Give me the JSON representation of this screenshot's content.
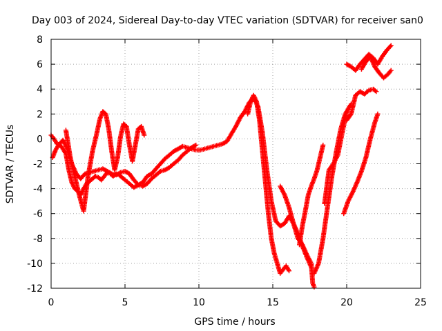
{
  "chart_data": {
    "type": "scatter",
    "title": "Day 003 of 2024, Sidereal Day-to-day VTEC variation (SDTVAR) for receiver san0",
    "xlabel": "GPS time / hours",
    "ylabel": "SDTVAR / TECUs",
    "xlim": [
      0,
      25
    ],
    "ylim": [
      -12,
      8
    ],
    "xticks": [
      0,
      5,
      10,
      15,
      20,
      25
    ],
    "yticks": [
      -12,
      -10,
      -8,
      -6,
      -4,
      -2,
      0,
      2,
      4,
      6,
      8
    ],
    "grid": true,
    "legend": "none",
    "marker": "+",
    "colors": {
      "series": "#ff0000",
      "grid": "#a0a0a0",
      "axis": "#000000"
    },
    "series": [
      {
        "x": [
          0.0,
          0.2,
          0.4,
          0.6,
          0.8,
          1.0,
          1.2,
          1.4,
          1.6,
          1.8,
          2.0,
          2.2,
          2.4,
          2.6,
          2.8,
          3.0,
          3.2,
          3.4,
          3.6,
          3.8,
          4.0,
          4.2,
          4.4,
          4.6,
          4.8,
          5.0,
          5.3,
          5.6,
          5.9,
          6.2,
          6.5,
          6.8,
          7.1,
          7.4,
          7.7,
          8.0,
          8.3,
          8.6,
          8.9,
          9.2,
          9.5,
          9.8,
          10.1,
          10.4,
          10.7,
          11.0,
          11.3,
          11.6,
          11.9,
          12.2,
          12.5,
          12.8,
          13.1,
          13.4,
          13.7,
          14.0,
          14.3,
          14.6,
          14.9,
          15.2,
          15.5,
          15.8,
          16.1,
          16.4,
          16.7,
          17.0,
          17.3,
          17.6
        ],
        "y": [
          0.3,
          0.0,
          -0.4,
          -0.5,
          -0.8,
          -1.2,
          -2.5,
          -3.5,
          -4.0,
          -4.2,
          -4.5,
          -4.0,
          -3.6,
          -3.4,
          -3.2,
          -3.0,
          -3.1,
          -3.3,
          -3.0,
          -2.7,
          -2.8,
          -3.0,
          -2.8,
          -2.9,
          -3.1,
          -3.3,
          -3.6,
          -3.9,
          -3.7,
          -3.5,
          -3.0,
          -2.8,
          -2.4,
          -2.0,
          -1.6,
          -1.3,
          -1.0,
          -0.8,
          -0.6,
          -0.7,
          -0.8,
          -0.9,
          -0.9,
          -0.8,
          -0.7,
          -0.6,
          -0.5,
          -0.4,
          -0.2,
          0.4,
          1.0,
          1.7,
          2.2,
          2.9,
          3.3,
          2.6,
          0.5,
          -2.5,
          -5.0,
          -6.6,
          -7.0,
          -6.8,
          -6.2,
          -6.8,
          -7.6,
          -8.6,
          -9.5,
          -10.3
        ]
      },
      {
        "x": [
          0.1,
          0.3,
          0.5,
          0.8,
          1.1,
          1.4,
          1.7,
          2.0,
          2.3,
          2.6,
          2.9,
          3.2,
          3.5,
          3.8,
          4.1,
          4.4,
          4.7,
          5.0,
          5.3,
          5.6,
          5.9,
          6.2,
          6.5,
          6.8,
          7.1,
          7.4,
          7.7,
          8.0,
          8.3,
          8.6,
          8.9,
          9.2,
          9.5,
          9.8
        ],
        "y": [
          -1.5,
          -0.9,
          -0.5,
          -0.1,
          -0.8,
          -2.0,
          -2.8,
          -3.2,
          -2.8,
          -2.7,
          -2.6,
          -2.5,
          -2.4,
          -2.6,
          -2.8,
          -2.9,
          -2.7,
          -2.6,
          -2.8,
          -3.3,
          -3.7,
          -3.8,
          -3.6,
          -3.2,
          -2.9,
          -2.6,
          -2.5,
          -2.3,
          -2.0,
          -1.7,
          -1.3,
          -1.0,
          -0.7,
          -0.5
        ]
      },
      {
        "x": [
          1.0,
          1.3,
          1.6,
          1.9,
          2.2,
          2.5,
          2.8,
          3.1,
          3.3,
          3.5,
          3.7,
          3.9,
          4.1,
          4.3,
          4.5,
          4.7,
          4.9,
          5.1,
          5.3,
          5.5,
          5.7,
          5.9,
          6.1,
          6.3
        ],
        "y": [
          0.7,
          -1.5,
          -3.0,
          -4.5,
          -5.8,
          -3.0,
          -1.0,
          0.5,
          1.6,
          2.2,
          2.0,
          0.8,
          -1.0,
          -2.5,
          -1.5,
          0.2,
          1.2,
          1.0,
          -0.5,
          -1.8,
          -0.5,
          0.8,
          1.0,
          0.3
        ]
      },
      {
        "x": [
          13.3,
          13.5,
          13.7,
          13.9,
          14.1,
          14.3,
          14.5,
          14.7,
          14.9,
          15.1,
          15.3,
          15.5,
          15.7,
          15.9,
          16.1
        ],
        "y": [
          2.0,
          3.0,
          3.5,
          3.0,
          1.5,
          -1.0,
          -3.5,
          -6.0,
          -8.0,
          -9.2,
          -10.0,
          -10.8,
          -10.5,
          -10.2,
          -10.6
        ]
      },
      {
        "x": [
          15.5,
          15.8,
          16.1,
          16.4,
          16.7,
          17.0,
          17.3,
          17.6,
          17.7,
          17.8
        ],
        "y": [
          -3.8,
          -4.5,
          -5.5,
          -6.8,
          -8.0,
          -8.5,
          -9.3,
          -10.0,
          -11.6,
          -11.9
        ]
      },
      {
        "x": [
          16.8,
          17.0,
          17.2,
          17.4,
          17.6,
          17.8,
          18.0,
          18.2,
          18.4
        ],
        "y": [
          -8.5,
          -7.0,
          -5.8,
          -4.5,
          -3.8,
          -3.2,
          -2.5,
          -1.5,
          -0.5
        ]
      },
      {
        "x": [
          17.8,
          18.1,
          18.4,
          18.7,
          19.0,
          19.3,
          19.6,
          19.9,
          20.2
        ],
        "y": [
          -10.8,
          -10.0,
          -8.0,
          -5.5,
          -3.0,
          -1.0,
          0.8,
          2.0,
          2.6
        ]
      },
      {
        "x": [
          18.5,
          18.8,
          19.1,
          19.4,
          19.7,
          20.0,
          20.3
        ],
        "y": [
          -5.2,
          -2.5,
          -2.0,
          -1.3,
          0.5,
          2.2,
          2.8
        ]
      },
      {
        "x": [
          20.0,
          20.3,
          20.6,
          20.9,
          21.2,
          21.5,
          21.8,
          22.0
        ],
        "y": [
          1.5,
          2.0,
          3.5,
          3.8,
          3.6,
          3.9,
          4.0,
          3.8
        ]
      },
      {
        "x": [
          19.8,
          20.1,
          20.4,
          20.7,
          21.0,
          21.3,
          21.6,
          21.9,
          22.1
        ],
        "y": [
          -6.0,
          -5.0,
          -4.3,
          -3.5,
          -2.6,
          -1.5,
          0.0,
          1.3,
          2.0
        ]
      },
      {
        "x": [
          20.0,
          20.3,
          20.6,
          20.9,
          21.2,
          21.5,
          21.8,
          22.1,
          22.4,
          22.7,
          23.0
        ],
        "y": [
          6.0,
          5.8,
          5.5,
          6.0,
          6.4,
          6.8,
          6.5,
          6.0,
          6.6,
          7.1,
          7.5
        ]
      },
      {
        "x": [
          21.0,
          21.3,
          21.6,
          21.9,
          22.2,
          22.5,
          22.8,
          23.0
        ],
        "y": [
          5.6,
          6.2,
          6.6,
          5.8,
          5.3,
          4.9,
          5.2,
          5.5
        ]
      }
    ]
  }
}
